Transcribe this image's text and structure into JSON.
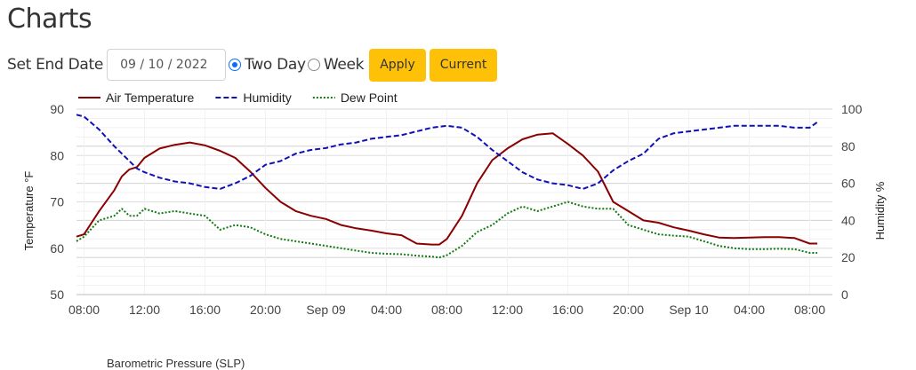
{
  "page": {
    "title": "Charts",
    "next_chart_title": "Barometric Pressure (SLP)"
  },
  "controls": {
    "end_date_label": "Set End Date",
    "end_date_value": "09 / 10 / 2022",
    "radio_two_day": "Two Day",
    "radio_week": "Week",
    "selected_range": "Two Day",
    "apply_label": "Apply",
    "current_label": "Current",
    "button_color": "#ffc107"
  },
  "chart_data": {
    "type": "line",
    "x_unit": "hour",
    "x_tick_labels": [
      "08:00",
      "12:00",
      "16:00",
      "20:00",
      "Sep 09",
      "04:00",
      "08:00",
      "12:00",
      "16:00",
      "20:00",
      "Sep 10",
      "04:00",
      "08:00"
    ],
    "x_tick_values": [
      8,
      12,
      16,
      20,
      24,
      28,
      32,
      36,
      40,
      44,
      48,
      52,
      56
    ],
    "xlim": [
      7.5,
      57.5
    ],
    "y_left": {
      "label": "Temperature °F",
      "ylim": [
        50,
        90
      ],
      "ticks": [
        50,
        60,
        70,
        80,
        90
      ]
    },
    "y_right": {
      "label": "Humidity %",
      "ylim": [
        0,
        100
      ],
      "ticks": [
        0,
        20,
        40,
        60,
        80,
        100
      ]
    },
    "grid": true,
    "legend_position": "top-left",
    "series": [
      {
        "name": "Air Temperature",
        "axis": "left",
        "color": "#8b0000",
        "style": "solid",
        "x": [
          7.5,
          8,
          9,
          10,
          10.5,
          11,
          11.5,
          12,
          13,
          14,
          15,
          16,
          17,
          18,
          19,
          20,
          21,
          22,
          23,
          24,
          25,
          26,
          27,
          28,
          29,
          30,
          31,
          31.5,
          32,
          33,
          34,
          35,
          36,
          37,
          38,
          39,
          40,
          41,
          42,
          43,
          44,
          45,
          46,
          47,
          48,
          49,
          50,
          51,
          52,
          53,
          54,
          55,
          56,
          56.5
        ],
        "values": [
          62.5,
          63,
          68,
          72.5,
          75.5,
          77,
          77.5,
          79.5,
          81.5,
          82.3,
          82.8,
          82.2,
          81,
          79.5,
          76.5,
          73,
          70,
          68,
          67,
          66.3,
          65,
          64.3,
          63.8,
          63.2,
          62.8,
          61,
          60.8,
          60.8,
          62,
          67,
          74,
          79,
          81.5,
          83.5,
          84.5,
          84.8,
          82.5,
          80,
          76.5,
          70,
          68,
          66,
          65.5,
          64.5,
          63.8,
          63,
          62.3,
          62.2,
          62.3,
          62.4,
          62.4,
          62.2,
          61,
          61
        ]
      },
      {
        "name": "Humidity",
        "axis": "right",
        "color": "#1010b8",
        "style": "dashed",
        "x": [
          7.5,
          8,
          9,
          10,
          11,
          11.5,
          12,
          13,
          14,
          15,
          16,
          17,
          18,
          19,
          20,
          21,
          22,
          23,
          24,
          25,
          26,
          27,
          28,
          29,
          30,
          31,
          32,
          33,
          34,
          35,
          36,
          37,
          38,
          39,
          40,
          41,
          42,
          43,
          44,
          45,
          46,
          47,
          48,
          49,
          50,
          51,
          52,
          53,
          54,
          55,
          56,
          56.5
        ],
        "values": [
          97,
          96,
          89,
          80,
          72,
          68,
          66,
          63,
          61,
          60,
          58,
          57,
          60,
          64,
          70,
          72,
          76,
          78,
          79,
          81,
          82,
          84,
          85,
          86,
          88,
          90,
          91,
          90,
          85,
          78,
          72,
          66,
          62,
          60,
          59,
          57,
          60,
          67,
          72,
          76,
          84,
          87,
          88,
          89,
          90,
          91,
          91,
          91,
          91,
          90,
          90,
          93
        ]
      },
      {
        "name": "Dew Point",
        "axis": "left",
        "color": "#117a11",
        "style": "dotted",
        "x": [
          7.5,
          8,
          9,
          10,
          10.5,
          11,
          11.5,
          12,
          13,
          14,
          15,
          16,
          17,
          18,
          19,
          20,
          21,
          22,
          23,
          24,
          25,
          26,
          27,
          28,
          29,
          30,
          31,
          31.5,
          32,
          33,
          34,
          35,
          36,
          37,
          38,
          39,
          40,
          41,
          42,
          43,
          44,
          45,
          46,
          47,
          48,
          49,
          50,
          51,
          52,
          53,
          54,
          55,
          56,
          56.5
        ],
        "values": [
          61.5,
          62.5,
          66,
          67,
          68.5,
          67,
          67,
          68.5,
          67.5,
          68,
          67.5,
          67,
          64,
          65,
          64.5,
          63,
          62,
          61.5,
          61,
          60.5,
          60,
          59.5,
          59,
          58.8,
          58.7,
          58.4,
          58.2,
          58,
          58.5,
          60.5,
          63.5,
          65,
          67.5,
          69,
          68,
          69,
          70,
          69,
          68.5,
          68.5,
          65,
          64,
          63,
          62.7,
          62.5,
          61.5,
          60.5,
          60,
          59.8,
          59.8,
          59.9,
          59.8,
          59,
          59
        ]
      }
    ]
  }
}
